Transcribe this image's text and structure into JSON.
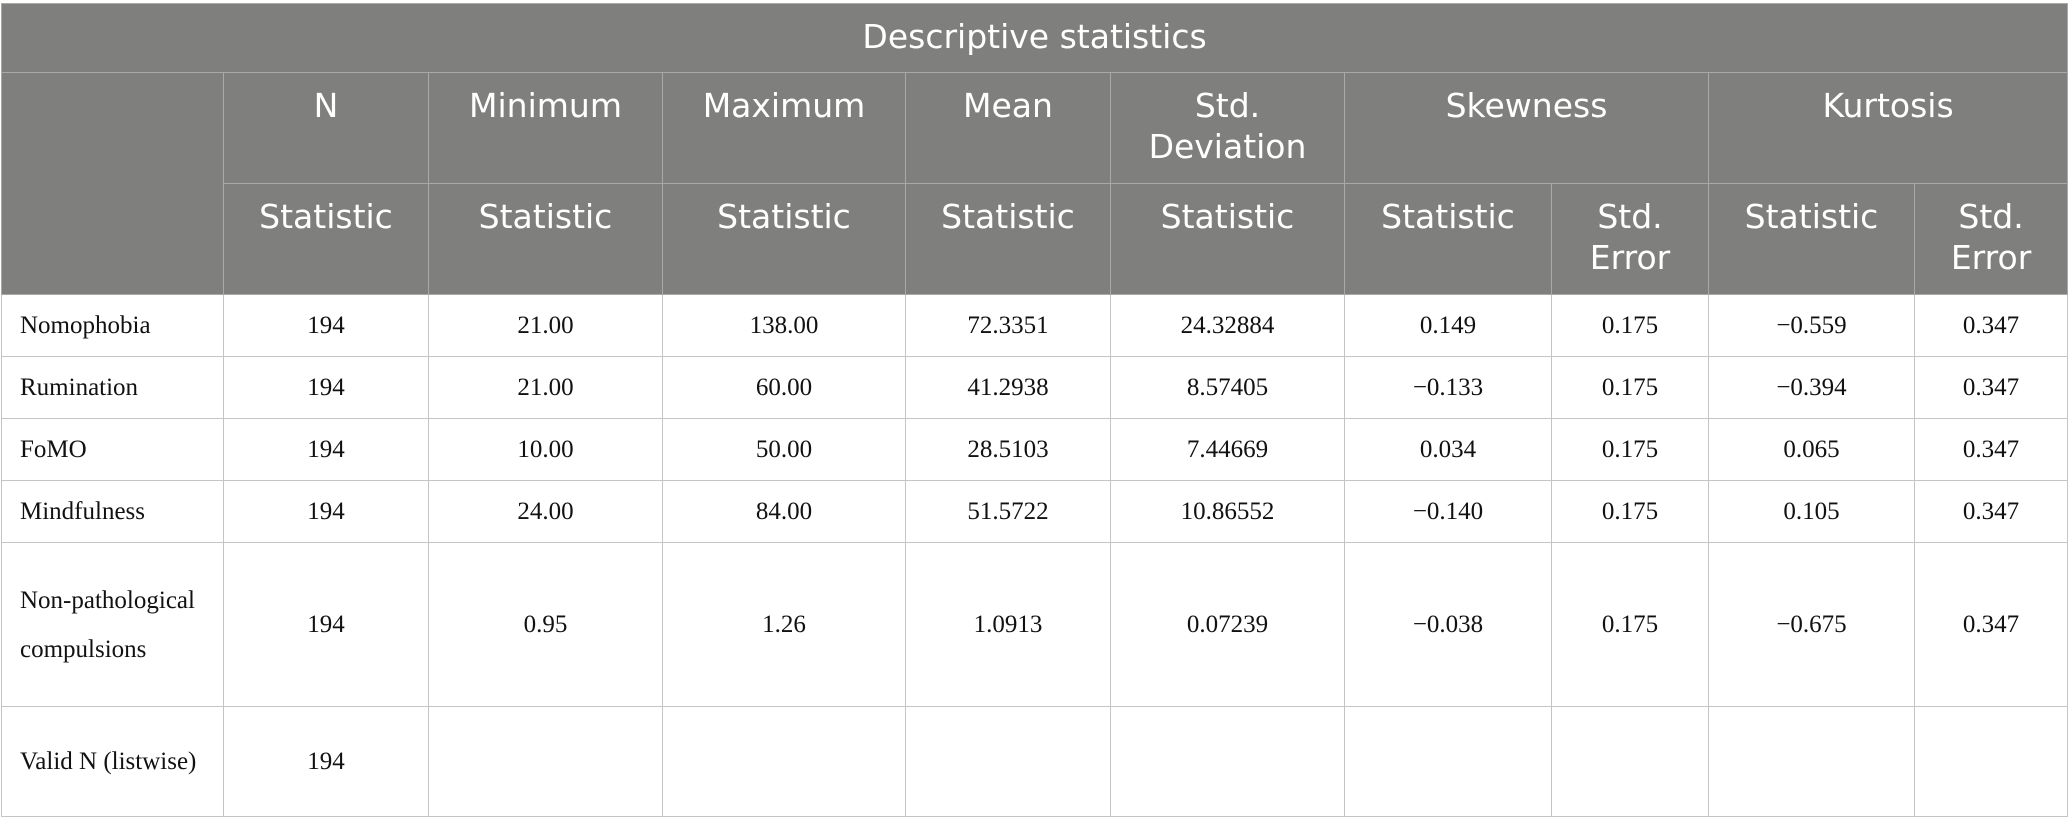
{
  "table": {
    "title": "Descriptive statistics",
    "header1": [
      "N",
      "Minimum",
      "Maximum",
      "Mean",
      "Std. Deviation",
      "Skewness",
      "Kurtosis"
    ],
    "header2": [
      "Statistic",
      "Statistic",
      "Statistic",
      "Statistic",
      "Statistic",
      "Statistic",
      "Std. Error",
      "Statistic",
      "Std. Error"
    ],
    "rows": [
      {
        "label": "Nomophobia",
        "cells": [
          "194",
          "21.00",
          "138.00",
          "72.3351",
          "24.32884",
          "0.149",
          "0.175",
          "−0.559",
          "0.347"
        ]
      },
      {
        "label": "Rumination",
        "cells": [
          "194",
          "21.00",
          "60.00",
          "41.2938",
          "8.57405",
          "−0.133",
          "0.175",
          "−0.394",
          "0.347"
        ]
      },
      {
        "label": "FoMO",
        "cells": [
          "194",
          "10.00",
          "50.00",
          "28.5103",
          "7.44669",
          "0.034",
          "0.175",
          "0.065",
          "0.347"
        ]
      },
      {
        "label": "Mindfulness",
        "cells": [
          "194",
          "24.00",
          "84.00",
          "51.5722",
          "10.86552",
          "−0.140",
          "0.175",
          "0.105",
          "0.347"
        ]
      },
      {
        "label": "Non-pathological compulsions",
        "cells": [
          "194",
          "0.95",
          "1.26",
          "1.0913",
          "0.07239",
          "−0.038",
          "0.175",
          "−0.675",
          "0.347"
        ]
      },
      {
        "label": "Valid N (listwise)",
        "cells": [
          "194"
        ]
      }
    ]
  }
}
